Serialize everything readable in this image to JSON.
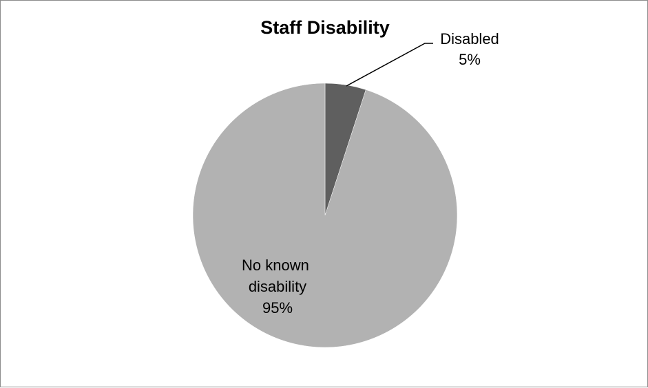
{
  "chart_data": {
    "type": "pie",
    "title": "Staff Disability",
    "slices": [
      {
        "label": "Disabled",
        "value": 5,
        "value_label": "5%",
        "color": "#5f5f5f"
      },
      {
        "label": "No known disability",
        "value": 95,
        "value_label": "95%",
        "color": "#b2b2b2"
      }
    ],
    "legend": "none",
    "data_labels": "category and percentage"
  }
}
